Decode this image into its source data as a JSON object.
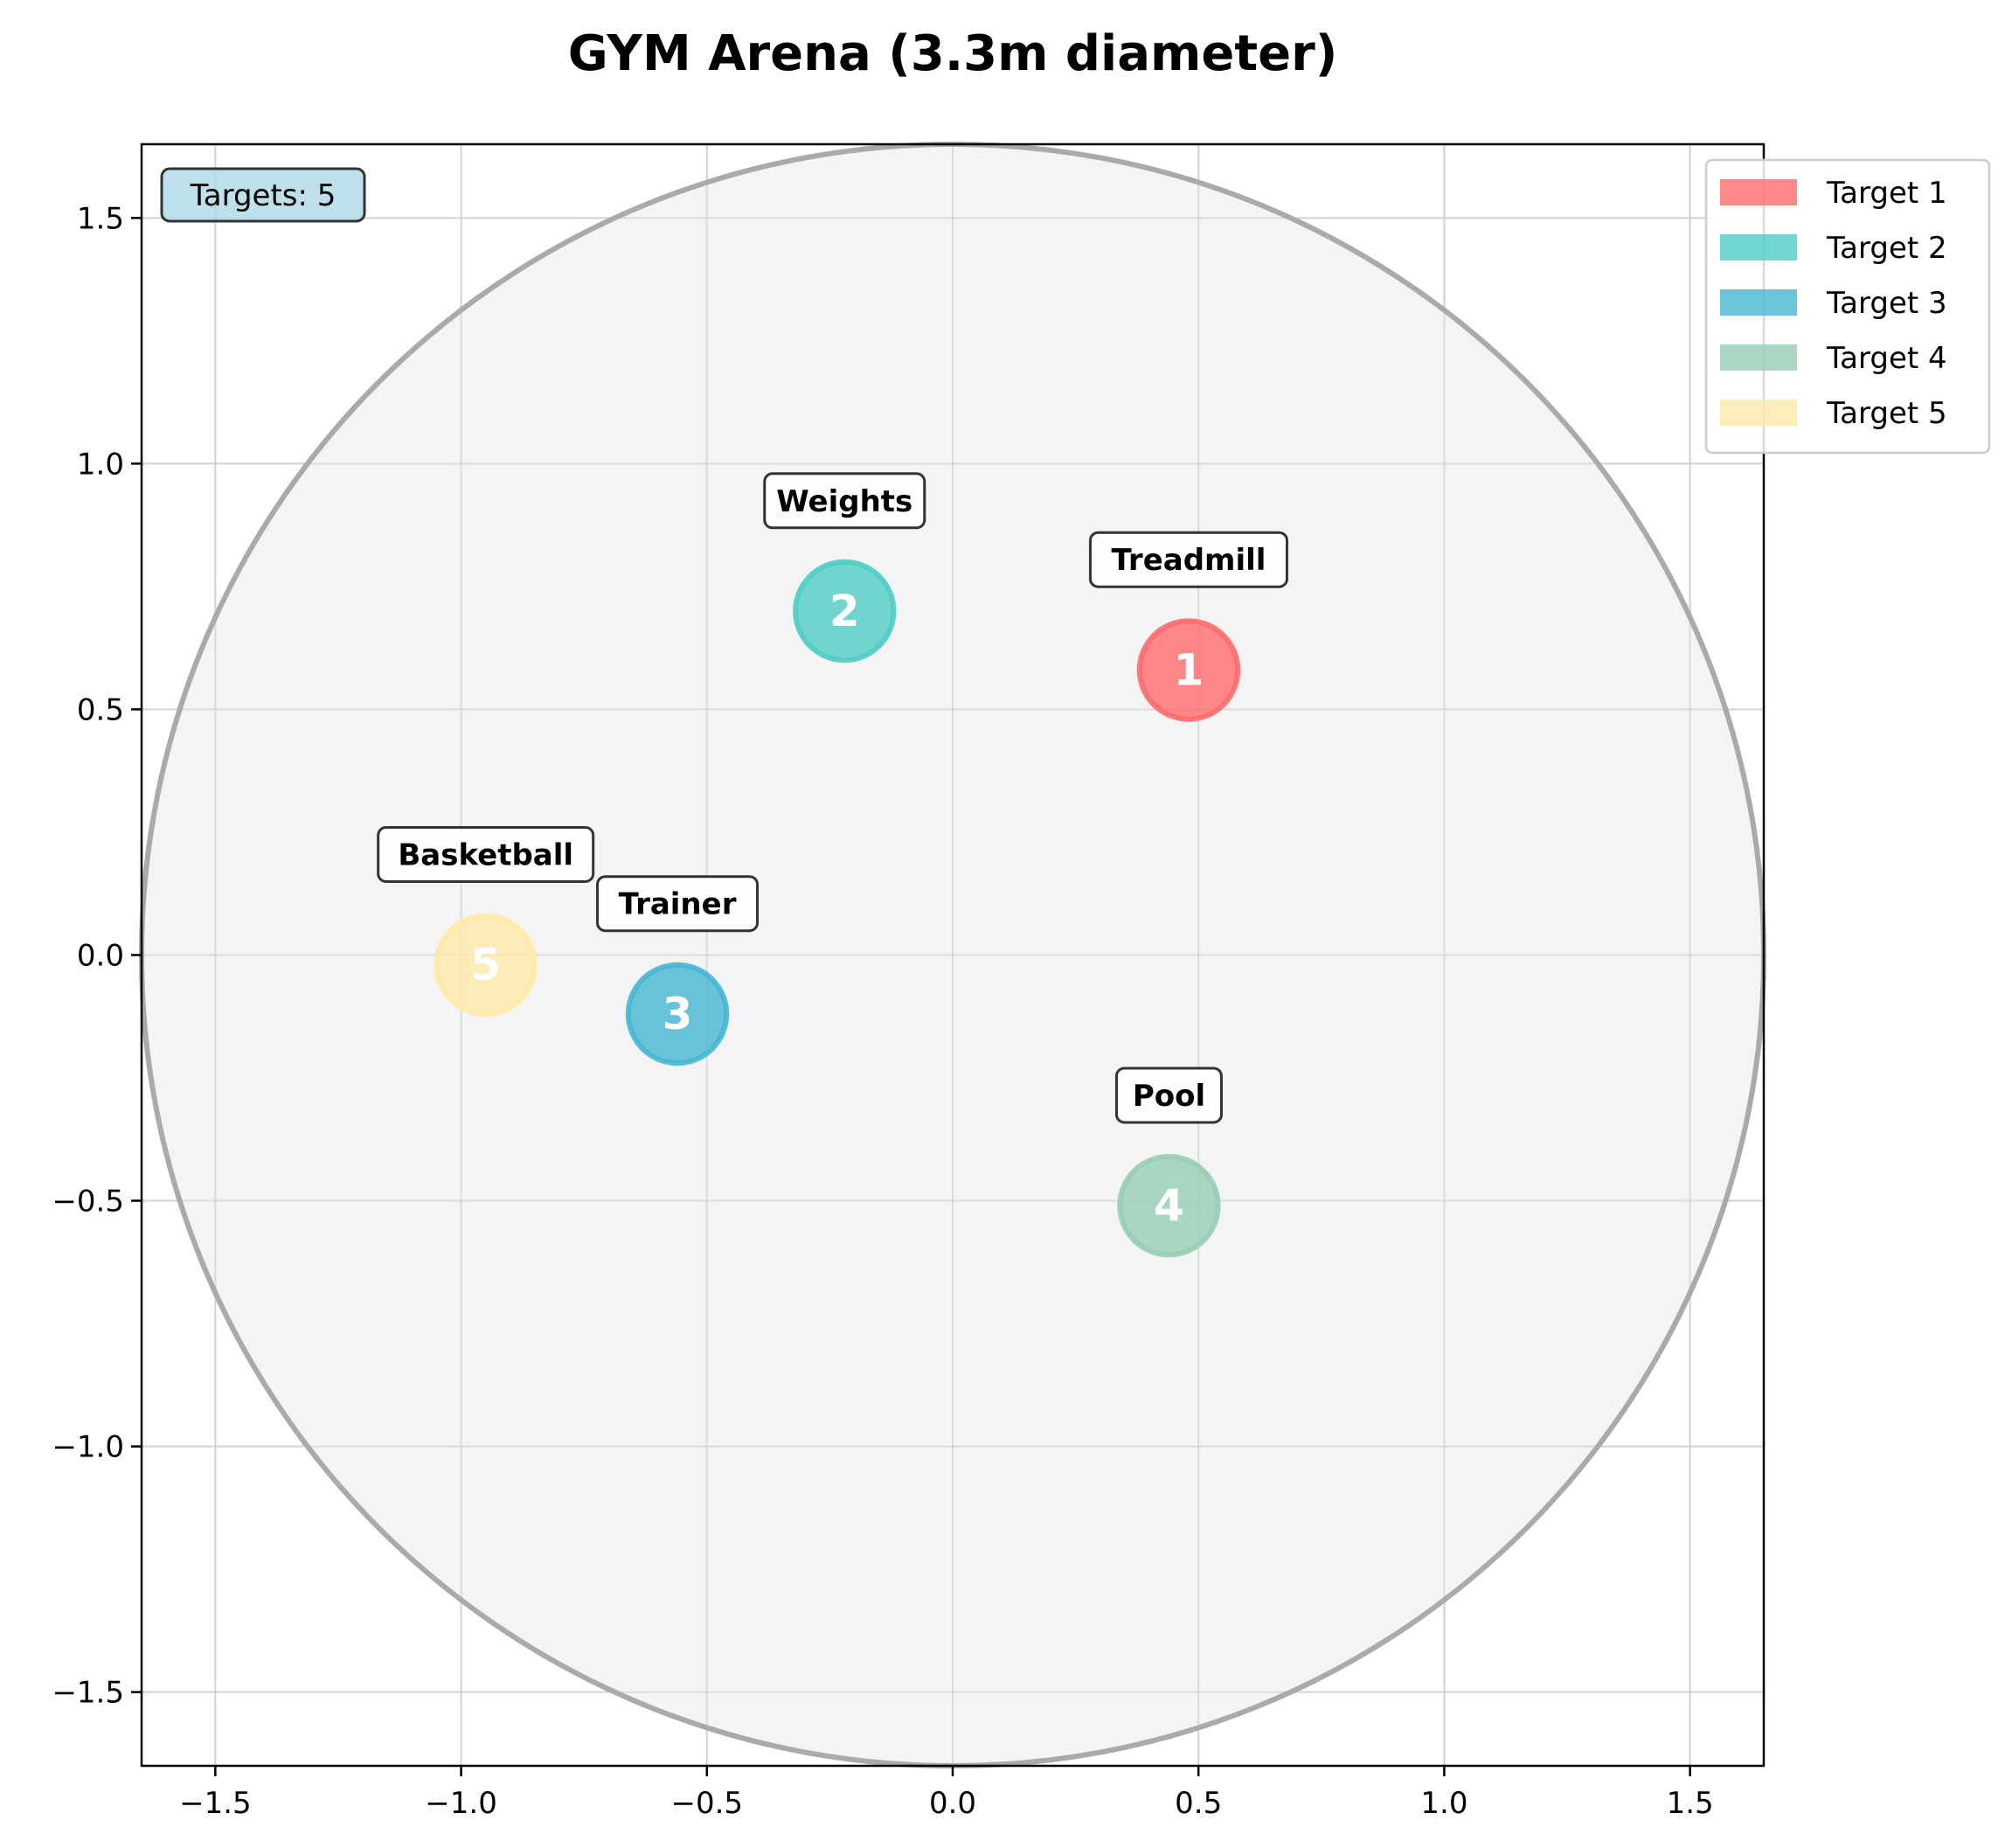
{
  "chart_data": {
    "type": "scatter",
    "title": "GYM Arena (3.3m diameter)",
    "xlabel": "",
    "ylabel": "",
    "xlim": [
      -1.65,
      1.65
    ],
    "ylim": [
      -1.65,
      1.65
    ],
    "xticks": [
      -1.5,
      -1.0,
      -0.5,
      0.0,
      0.5,
      1.0,
      1.5
    ],
    "yticks": [
      -1.5,
      -1.0,
      -0.5,
      0.0,
      0.5,
      1.0,
      1.5
    ],
    "xtick_labels": [
      "−1.5",
      "−1.0",
      "−0.5",
      "0.0",
      "0.5",
      "1.0",
      "1.5"
    ],
    "ytick_labels": [
      "−1.5",
      "−1.0",
      "−0.5",
      "0.0",
      "0.5",
      "1.0",
      "1.5"
    ],
    "grid": true,
    "legend_placement": "top-right, outside",
    "arena": {
      "center": [
        0.0,
        0.0
      ],
      "radius": 1.65,
      "fill_color": "#f0f0f0",
      "edge_color": "#aaaaaa"
    },
    "info_box": {
      "text": "Targets: 5",
      "placement": "top-left",
      "fill_color": "#add8e6"
    },
    "target_radius": 0.1,
    "targets": [
      {
        "number": "1",
        "label": "Treadmill",
        "legend": "Target 1",
        "x": 0.48,
        "y": 0.58,
        "color": "#ff6b6b",
        "alpha": 0.8
      },
      {
        "number": "2",
        "label": "Weights",
        "legend": "Target 2",
        "x": -0.22,
        "y": 0.7,
        "color": "#4ecdc4",
        "alpha": 0.8
      },
      {
        "number": "3",
        "label": "Trainer",
        "legend": "Target 3",
        "x": -0.56,
        "y": -0.12,
        "color": "#45b7d1",
        "alpha": 0.8
      },
      {
        "number": "4",
        "label": "Pool",
        "legend": "Target 4",
        "x": 0.44,
        "y": -0.51,
        "color": "#96ceb4",
        "alpha": 0.8
      },
      {
        "number": "5",
        "label": "Basketball",
        "legend": "Target 5",
        "x": -0.95,
        "y": -0.02,
        "color": "#ffeaa7",
        "alpha": 0.8
      }
    ]
  }
}
